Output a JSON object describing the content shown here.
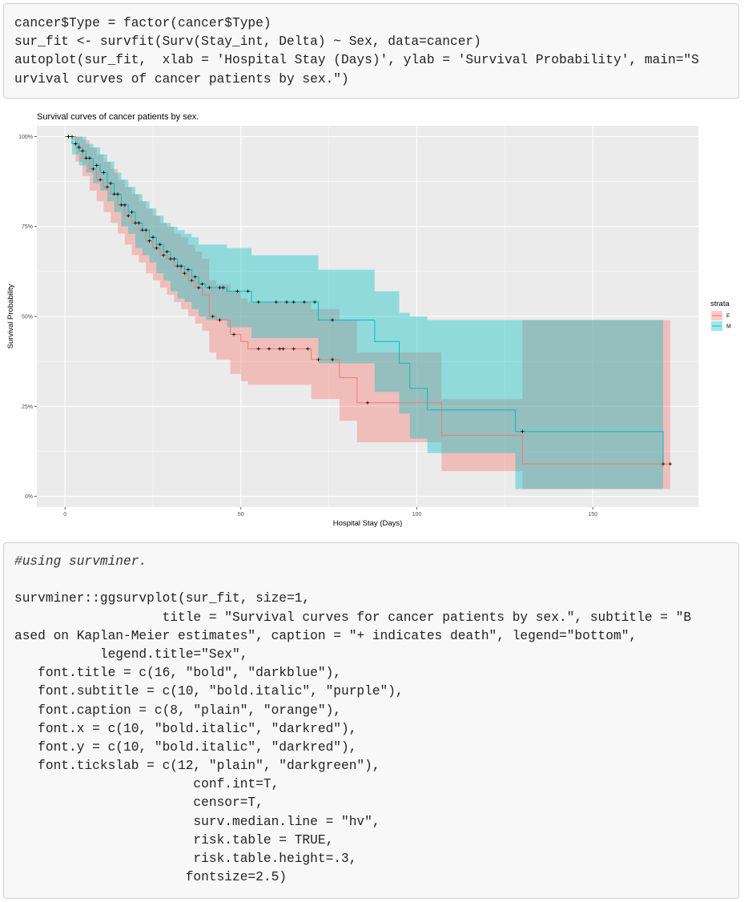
{
  "code_top": {
    "lines": [
      "cancer$Type = factor(cancer$Type)",
      "sur_fit <- survfit(Surv(Stay_int, Delta) ~ Sex, data=cancer)",
      "autoplot(sur_fit,  xlab = 'Hospital Stay (Days)', ylab = 'Survival Probability', main=\"S",
      "urvival curves of cancer patients by sex.\")"
    ]
  },
  "code_bottom": {
    "lines": [
      "#using survminer.",
      "",
      "survminer::ggsurvplot(sur_fit, size=1,",
      "                   title = \"Survival curves for cancer patients by sex.\", subtitle = \"B",
      "ased on Kaplan-Meier estimates\", caption = \"+ indicates death\", legend=\"bottom\",",
      "           legend.title=\"Sex\",",
      "   font.title = c(16, \"bold\", \"darkblue\"),",
      "   font.subtitle = c(10, \"bold.italic\", \"purple\"),",
      "   font.caption = c(8, \"plain\", \"orange\"),",
      "   font.x = c(10, \"bold.italic\", \"darkred\"),",
      "   font.y = c(10, \"bold.italic\", \"darkred\"),",
      "   font.tickslab = c(12, \"plain\", \"darkgreen\"),",
      "                       conf.int=T,",
      "                       censor=T,",
      "                       surv.median.line = \"hv\",",
      "                       risk.table = TRUE,",
      "                       risk.table.height=.3,",
      "                      fontsize=2.5)"
    ]
  },
  "chart_data": {
    "type": "line",
    "title": "Survival curves of cancer patients by sex.",
    "xlabel": "Hospital Stay (Days)",
    "ylabel": "Survival Probability",
    "xlim": [
      -8,
      180
    ],
    "ylim": [
      -0.03,
      1.03
    ],
    "xticks": [
      0,
      50,
      100,
      150
    ],
    "yticks": [
      0,
      0.25,
      0.5,
      0.75,
      1.0
    ],
    "ytick_labels": [
      "0%",
      "25%",
      "50%",
      "75%",
      "100%"
    ],
    "grid": true,
    "legend": {
      "title": "strata",
      "position": "right",
      "entries": [
        "F",
        "M"
      ]
    },
    "colors": {
      "F": "#F8766D",
      "M": "#00BFC4",
      "panel": "#EBEBEB",
      "grid": "#FFFFFF"
    },
    "series": [
      {
        "name": "F",
        "step_x": [
          0,
          3,
          5,
          7,
          9,
          11,
          13,
          15,
          17,
          19,
          21,
          23,
          25,
          27,
          29,
          31,
          33,
          35,
          37,
          39,
          41,
          43,
          47,
          50,
          52,
          70,
          78,
          83,
          107,
          130,
          172
        ],
        "step_y": [
          1.0,
          0.97,
          0.94,
          0.91,
          0.88,
          0.86,
          0.84,
          0.81,
          0.78,
          0.76,
          0.74,
          0.71,
          0.69,
          0.67,
          0.66,
          0.64,
          0.62,
          0.6,
          0.58,
          0.56,
          0.5,
          0.49,
          0.45,
          0.43,
          0.41,
          0.38,
          0.33,
          0.26,
          0.17,
          0.09,
          0.09
        ],
        "ci_upper": [
          1.0,
          1.0,
          0.99,
          0.97,
          0.95,
          0.93,
          0.91,
          0.88,
          0.86,
          0.84,
          0.82,
          0.8,
          0.78,
          0.76,
          0.75,
          0.73,
          0.72,
          0.7,
          0.68,
          0.66,
          0.6,
          0.59,
          0.57,
          0.55,
          0.54,
          0.52,
          0.49,
          0.4,
          0.27,
          0.49,
          0.49
        ],
        "ci_lower": [
          1.0,
          0.93,
          0.89,
          0.85,
          0.82,
          0.79,
          0.76,
          0.73,
          0.7,
          0.67,
          0.65,
          0.62,
          0.6,
          0.58,
          0.56,
          0.54,
          0.52,
          0.5,
          0.48,
          0.46,
          0.4,
          0.38,
          0.34,
          0.32,
          0.31,
          0.27,
          0.21,
          0.15,
          0.07,
          0.02,
          0.02
        ],
        "censor_x": [
          1,
          2,
          4,
          6,
          8,
          10,
          12,
          14,
          16,
          18,
          20,
          22,
          24,
          26,
          28,
          30,
          32,
          34,
          36,
          38,
          42,
          44,
          48,
          55,
          58,
          61,
          62,
          65,
          69,
          72,
          76,
          86,
          170,
          172
        ]
      },
      {
        "name": "M",
        "step_x": [
          0,
          2,
          4,
          6,
          8,
          10,
          12,
          14,
          16,
          18,
          20,
          22,
          24,
          26,
          28,
          30,
          32,
          34,
          36,
          38,
          40,
          46,
          53,
          72,
          88,
          95,
          98,
          103,
          128,
          170
        ],
        "step_y": [
          1.0,
          0.98,
          0.96,
          0.94,
          0.92,
          0.9,
          0.87,
          0.84,
          0.81,
          0.79,
          0.76,
          0.74,
          0.72,
          0.7,
          0.68,
          0.66,
          0.64,
          0.63,
          0.61,
          0.59,
          0.58,
          0.57,
          0.54,
          0.49,
          0.43,
          0.37,
          0.3,
          0.24,
          0.18,
          0.09
        ],
        "ci_upper": [
          1.0,
          1.0,
          1.0,
          0.98,
          0.97,
          0.95,
          0.93,
          0.9,
          0.88,
          0.86,
          0.84,
          0.82,
          0.8,
          0.78,
          0.76,
          0.75,
          0.74,
          0.73,
          0.72,
          0.7,
          0.7,
          0.69,
          0.67,
          0.63,
          0.57,
          0.51,
          0.5,
          0.49,
          0.49,
          0.49
        ],
        "ci_lower": [
          1.0,
          0.95,
          0.92,
          0.9,
          0.87,
          0.85,
          0.82,
          0.79,
          0.75,
          0.73,
          0.69,
          0.67,
          0.65,
          0.62,
          0.6,
          0.57,
          0.55,
          0.54,
          0.52,
          0.5,
          0.49,
          0.47,
          0.44,
          0.37,
          0.29,
          0.23,
          0.16,
          0.12,
          0.02,
          0.02
        ],
        "censor_x": [
          1,
          3,
          5,
          7,
          9,
          11,
          13,
          15,
          17,
          19,
          21,
          23,
          25,
          27,
          29,
          31,
          33,
          35,
          37,
          39,
          41,
          44,
          45,
          49,
          52,
          55,
          60,
          63,
          65,
          68,
          71,
          76,
          130
        ]
      }
    ]
  }
}
